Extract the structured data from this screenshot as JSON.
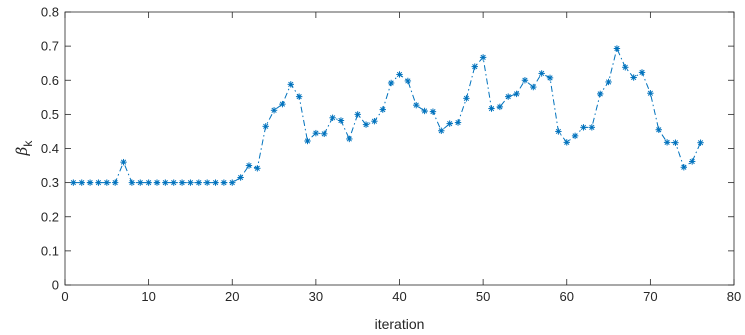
{
  "chart_data": {
    "type": "line",
    "xlabel": "iteration",
    "ylabel": {
      "symbol": "β",
      "subscript": "k"
    },
    "xlim": [
      0,
      80
    ],
    "ylim": [
      0,
      0.8
    ],
    "xticks": [
      "0",
      "10",
      "20",
      "30",
      "40",
      "50",
      "60",
      "70",
      "80"
    ],
    "yticks": [
      "0",
      "0.1",
      "0.2",
      "0.3",
      "0.4",
      "0.5",
      "0.6",
      "0.7",
      "0.8"
    ],
    "grid": false,
    "line_style": "dash-dot",
    "marker": "asterisk",
    "color": "#0072BD",
    "series": [
      {
        "x": [
          1,
          2,
          3,
          4,
          5,
          6,
          7,
          8,
          9,
          10,
          11,
          12,
          13,
          14,
          15,
          16,
          17,
          18,
          19,
          20,
          21,
          22,
          23,
          24,
          25,
          26,
          27,
          28,
          29,
          30,
          31,
          32,
          33,
          34,
          35,
          36,
          37,
          38,
          39,
          40,
          41,
          42,
          43,
          44,
          45,
          46,
          47,
          48,
          49,
          50,
          51,
          52,
          53,
          54,
          55,
          56,
          57,
          58,
          59,
          60,
          61,
          62,
          63,
          64,
          65,
          66,
          67,
          68,
          69,
          70,
          71,
          72,
          73,
          74,
          75,
          76
        ],
        "values": [
          0.3,
          0.3,
          0.3,
          0.3,
          0.3,
          0.3,
          0.36,
          0.3,
          0.3,
          0.3,
          0.3,
          0.3,
          0.3,
          0.3,
          0.3,
          0.3,
          0.3,
          0.3,
          0.3,
          0.3,
          0.315,
          0.35,
          0.342,
          0.465,
          0.512,
          0.53,
          0.588,
          0.552,
          0.422,
          0.445,
          0.443,
          0.49,
          0.482,
          0.428,
          0.5,
          0.47,
          0.48,
          0.514,
          0.592,
          0.617,
          0.598,
          0.527,
          0.51,
          0.508,
          0.452,
          0.473,
          0.476,
          0.547,
          0.64,
          0.667,
          0.517,
          0.522,
          0.552,
          0.56,
          0.6,
          0.58,
          0.62,
          0.607,
          0.45,
          0.418,
          0.437,
          0.462,
          0.462,
          0.56,
          0.595,
          0.693,
          0.638,
          0.608,
          0.623,
          0.562,
          0.455,
          0.418,
          0.417,
          0.345,
          0.362,
          0.417
        ]
      }
    ]
  }
}
